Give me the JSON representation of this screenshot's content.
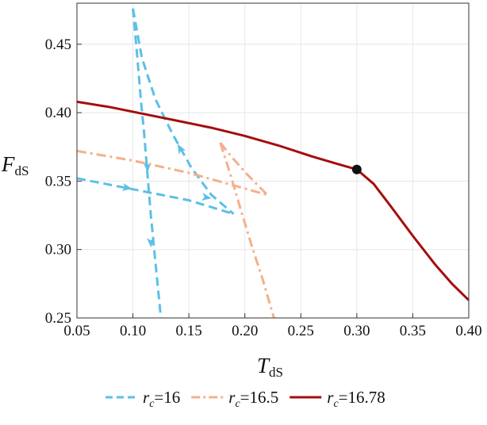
{
  "chart_data": {
    "type": "line",
    "xlabel": {
      "main": "T",
      "sub": "dS"
    },
    "ylabel": {
      "main": "F",
      "sub": "dS"
    },
    "xlim": [
      0.05,
      0.4
    ],
    "ylim": [
      0.25,
      0.48
    ],
    "xticks": [
      "0.05",
      "0.10",
      "0.15",
      "0.20",
      "0.25",
      "0.30",
      "0.35",
      "0.40"
    ],
    "yticks": [
      "0.25",
      "0.30",
      "0.35",
      "0.40",
      "0.45"
    ],
    "xtick_values": [
      0.05,
      0.1,
      0.15,
      0.2,
      0.25,
      0.3,
      0.35,
      0.4
    ],
    "ytick_values": [
      0.25,
      0.3,
      0.35,
      0.4,
      0.45
    ],
    "grid": true,
    "legend_position": "bottom",
    "series": [
      {
        "label_var": "r",
        "label_sub": "c",
        "label_value": "=16",
        "color": "#5bc0e6",
        "dash": "dashed",
        "branches": [
          [
            [
              0.1,
              0.476
            ],
            [
              0.104,
              0.44
            ],
            [
              0.107,
              0.41
            ],
            [
              0.11,
              0.385
            ],
            [
              0.113,
              0.355
            ],
            [
              0.116,
              0.325
            ],
            [
              0.119,
              0.3
            ],
            [
              0.122,
              0.275
            ],
            [
              0.125,
              0.25
            ]
          ],
          [
            [
              0.1,
              0.476
            ],
            [
              0.108,
              0.44
            ],
            [
              0.12,
              0.41
            ],
            [
              0.135,
              0.385
            ],
            [
              0.152,
              0.36
            ],
            [
              0.17,
              0.34
            ],
            [
              0.19,
              0.326
            ]
          ],
          [
            [
              0.05,
              0.352
            ],
            [
              0.1,
              0.344
            ],
            [
              0.15,
              0.336
            ],
            [
              0.19,
              0.326
            ]
          ]
        ],
        "arrows": [
          [
            0.113,
            0.36,
            -0.3
          ],
          [
            0.116,
            0.305,
            -0.2
          ],
          [
            0.142,
            0.374,
            1.0
          ],
          [
            0.095,
            0.345,
            1.0
          ],
          [
            0.166,
            0.338,
            1.0
          ]
        ]
      },
      {
        "label_var": "r",
        "label_sub": "c",
        "label_value": "=16.5",
        "color": "#f4b08a",
        "dash": "dashdot",
        "branches": [
          [
            [
              0.178,
              0.378
            ],
            [
              0.187,
              0.355
            ],
            [
              0.196,
              0.33
            ],
            [
              0.206,
              0.303
            ],
            [
              0.216,
              0.278
            ],
            [
              0.226,
              0.25
            ]
          ],
          [
            [
              0.178,
              0.378
            ],
            [
              0.19,
              0.366
            ],
            [
              0.202,
              0.355
            ],
            [
              0.22,
              0.34
            ]
          ],
          [
            [
              0.05,
              0.372
            ],
            [
              0.1,
              0.365
            ],
            [
              0.15,
              0.356
            ],
            [
              0.22,
              0.34
            ]
          ]
        ],
        "arrows": []
      },
      {
        "label_var": "r",
        "label_sub": "c",
        "label_value": "=16.78",
        "color": "#a50d0d",
        "dash": "solid",
        "branches": [
          [
            [
              0.05,
              0.408
            ],
            [
              0.08,
              0.404
            ],
            [
              0.11,
              0.399
            ],
            [
              0.14,
              0.394
            ],
            [
              0.17,
              0.389
            ],
            [
              0.2,
              0.383
            ],
            [
              0.23,
              0.376
            ],
            [
              0.26,
              0.368
            ],
            [
              0.285,
              0.362
            ],
            [
              0.3,
              0.3585
            ],
            [
              0.315,
              0.348
            ],
            [
              0.33,
              0.332
            ],
            [
              0.35,
              0.31
            ],
            [
              0.37,
              0.289
            ],
            [
              0.385,
              0.275
            ],
            [
              0.4,
              0.263
            ]
          ]
        ],
        "arrows": []
      }
    ],
    "markers": [
      {
        "x": 0.3,
        "y": 0.3585,
        "color": "#111111"
      }
    ]
  }
}
